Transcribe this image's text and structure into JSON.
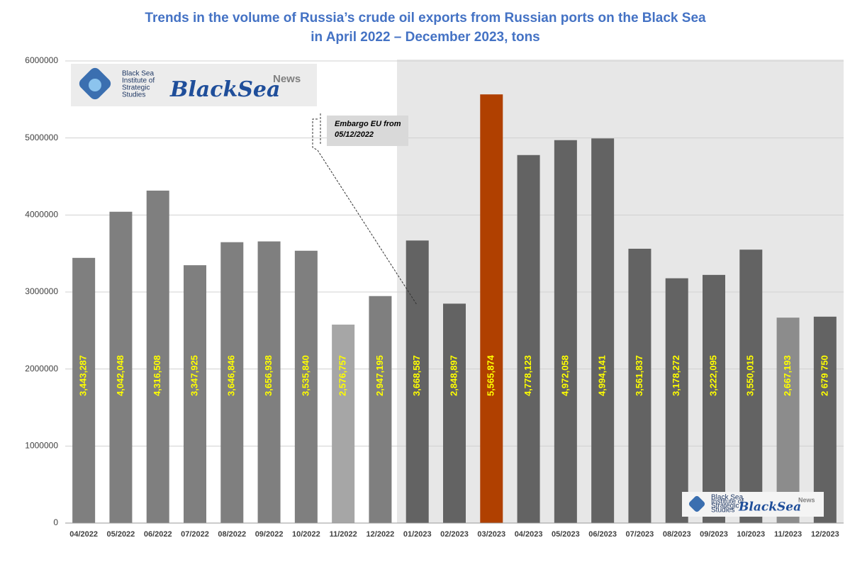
{
  "chart_data": {
    "type": "bar",
    "title": "Trends in the volume of Russia’s crude oil exports from Russian ports on the Black Sea",
    "subtitle": "in April 2022 – December 2023, tons",
    "categories": [
      "04/2022",
      "05/2022",
      "06/2022",
      "07/2022",
      "08/2022",
      "09/2022",
      "10/2022",
      "11/2022",
      "12/2022",
      "01/2023",
      "02/2023",
      "03/2023",
      "04/2023",
      "05/2023",
      "06/2023",
      "07/2023",
      "08/2023",
      "09/2023",
      "10/2023",
      "11/2023",
      "12/2023"
    ],
    "values": [
      3443287,
      4042048,
      4316508,
      3347925,
      3646846,
      3656938,
      3535840,
      2576757,
      2947195,
      3668587,
      2848897,
      5565874,
      4778123,
      4972058,
      4994141,
      3561837,
      3178272,
      3222095,
      3550015,
      2667193,
      2679750
    ],
    "value_labels": [
      "3,443,287",
      "4,042,048",
      "4,316,508",
      "3,347,925",
      "3,646,846",
      "3,656,938",
      "3,535,840",
      "2,576,757",
      "2,947,195",
      "3,668,587",
      "2,848,897",
      "5,565,874",
      "4,778,123",
      "4,972,058",
      "4,994,141",
      "3,561,837",
      "3,178,272",
      "3,222,095",
      "3,550,015",
      "2,667,193",
      "2 679 750"
    ],
    "colors": [
      "#7f7f7f",
      "#7f7f7f",
      "#7f7f7f",
      "#7f7f7f",
      "#7f7f7f",
      "#7f7f7f",
      "#7f7f7f",
      "#a6a6a6",
      "#7f7f7f",
      "#636363",
      "#636363",
      "#b04000",
      "#636363",
      "#636363",
      "#636363",
      "#636363",
      "#636363",
      "#636363",
      "#636363",
      "#8c8c8c",
      "#636363"
    ],
    "value_label_color": "#ffff00",
    "ylim": [
      0,
      6000000
    ],
    "yticks": [
      0,
      1000000,
      2000000,
      3000000,
      4000000,
      5000000,
      6000000
    ],
    "grid": true,
    "annotation": [
      "Embargo EU from",
      "05/12/2022"
    ]
  },
  "logo": {
    "institute": [
      "Black Sea",
      "Institute of",
      "Strategic",
      "Studies"
    ],
    "brand": "BlackSea",
    "tag": "News"
  }
}
